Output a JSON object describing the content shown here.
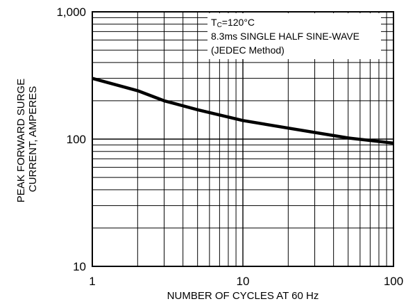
{
  "chart_data": {
    "type": "line",
    "title": "",
    "xlabel": "NUMBER OF CYCLES AT 60 Hz",
    "ylabel": [
      "PEAK FORWARD SURGE",
      "CURRENT, AMPERES"
    ],
    "x_scale": "log",
    "y_scale": "log",
    "xlim": [
      1,
      100
    ],
    "ylim": [
      10,
      1000
    ],
    "x_ticks": [
      {
        "value": 1,
        "label": "1"
      },
      {
        "value": 10,
        "label": "10"
      },
      {
        "value": 100,
        "label": "100"
      }
    ],
    "y_ticks": [
      {
        "value": 10,
        "label": "10"
      },
      {
        "value": 100,
        "label": "100"
      },
      {
        "value": 1000,
        "label": "1,000"
      }
    ],
    "grid": true,
    "legend_placement": "top-right",
    "annotation": {
      "line1_main": "T",
      "line1_sub": "C",
      "line1_rest": "=120°C",
      "line2": "8.3ms SINGLE HALF SINE-WAVE",
      "line3": "(JEDEC Method)"
    },
    "series": [
      {
        "color": "#000000",
        "x": [
          1,
          2,
          3,
          5,
          10,
          20,
          50,
          100
        ],
        "y": [
          300,
          240,
          200,
          170,
          140,
          122,
          102,
          93
        ]
      }
    ]
  }
}
